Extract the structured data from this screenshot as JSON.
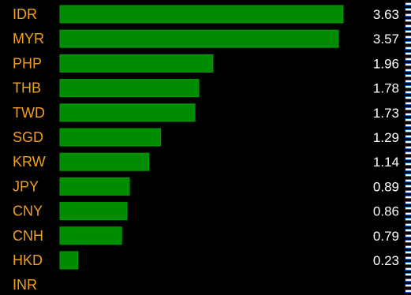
{
  "chart_data": {
    "type": "bar",
    "orientation": "horizontal",
    "categories": [
      "IDR",
      "MYR",
      "PHP",
      "THB",
      "TWD",
      "SGD",
      "KRW",
      "JPY",
      "CNY",
      "CNH",
      "HKD",
      "INR"
    ],
    "values": [
      3.63,
      3.57,
      1.96,
      1.78,
      1.73,
      1.29,
      1.14,
      0.89,
      0.86,
      0.79,
      0.23,
      null
    ],
    "value_labels": [
      "3.63",
      "3.57",
      "1.96",
      "1.78",
      "1.73",
      "1.29",
      "1.14",
      "0.89",
      "0.86",
      "0.79",
      "0.23",
      ""
    ],
    "xlim": [
      0,
      3.63
    ],
    "grid": false,
    "legend": "none",
    "colors": {
      "background": "#000000",
      "bar": "#008c00",
      "bar_edge": "#00a000",
      "category_text": "#f0a020",
      "value_text": "#ffffff"
    }
  }
}
